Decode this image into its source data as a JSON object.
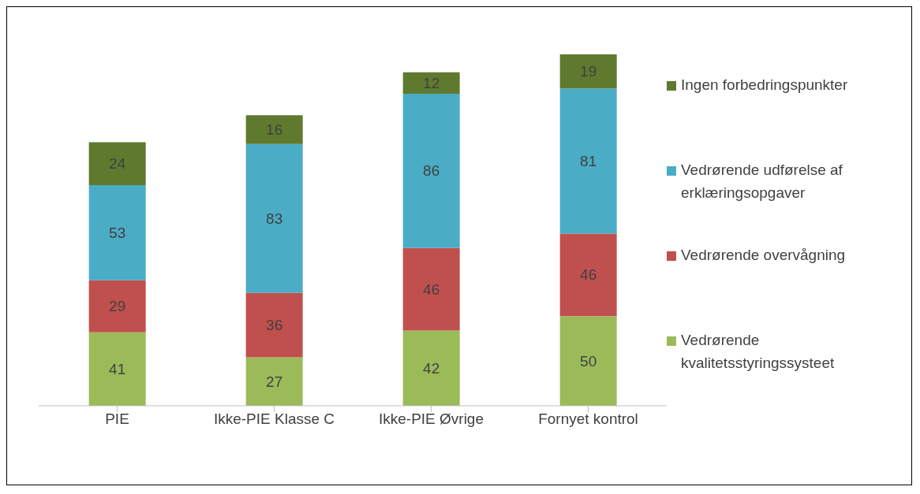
{
  "chart_data": {
    "type": "bar",
    "stacked": true,
    "data_labels": true,
    "categories": [
      "PIE",
      "Ikke-PIE Klasse C",
      "Ikke-PIE Øvrige",
      "Fornyet kontrol"
    ],
    "series": [
      {
        "name": "Vedrørende kvalitetsstyringssysteet",
        "color": "#9bbb59",
        "values": [
          41,
          27,
          42,
          50
        ]
      },
      {
        "name": "Vedrørende overvågning",
        "color": "#c0504d",
        "values": [
          29,
          36,
          46,
          46
        ]
      },
      {
        "name": "Vedrørende udførelse af erklæringsopgaver",
        "color": "#4bacc6",
        "values": [
          53,
          83,
          86,
          81
        ]
      },
      {
        "name": "Ingen forbedringspunkter",
        "color": "#5f7a2e",
        "values": [
          24,
          16,
          12,
          19
        ]
      }
    ],
    "legend": "right"
  }
}
